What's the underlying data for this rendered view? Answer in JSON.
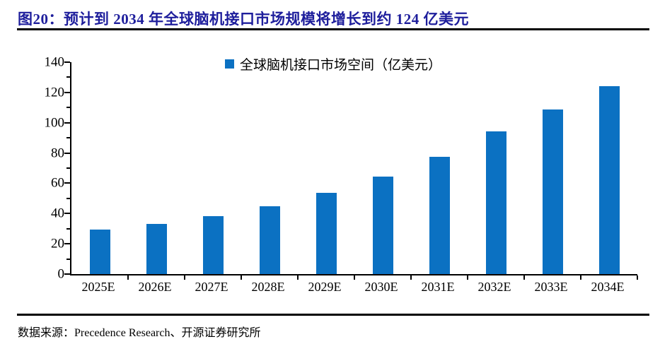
{
  "figure": {
    "title": "图20：预计到 2034 年全球脑机接口市场规模将增长到约 124 亿美元",
    "source": "数据来源：Precedence Research、开源证券研究所"
  },
  "colors": {
    "bar_blue": "#0b71c2",
    "title_navy": "#1e1e9c",
    "axis_black": "#000000"
  },
  "chart_data": {
    "type": "bar",
    "title": "",
    "legend": [
      "全球脑机接口市场空间（亿美元）"
    ],
    "legend_position": "top-center",
    "categories": [
      "2025E",
      "2026E",
      "2027E",
      "2028E",
      "2029E",
      "2030E",
      "2031E",
      "2032E",
      "2033E",
      "2034E"
    ],
    "values": [
      29.4,
      33.3,
      38.3,
      45.0,
      53.5,
      64.4,
      77.4,
      94.3,
      108.7,
      124.0
    ],
    "xlabel": "",
    "ylabel": "",
    "ylim": [
      0,
      140
    ],
    "yticks": [
      0,
      20,
      40,
      60,
      80,
      100,
      120,
      140
    ],
    "ytick_minor_step": 10,
    "grid": false,
    "bar_color": "#0b71c2"
  }
}
